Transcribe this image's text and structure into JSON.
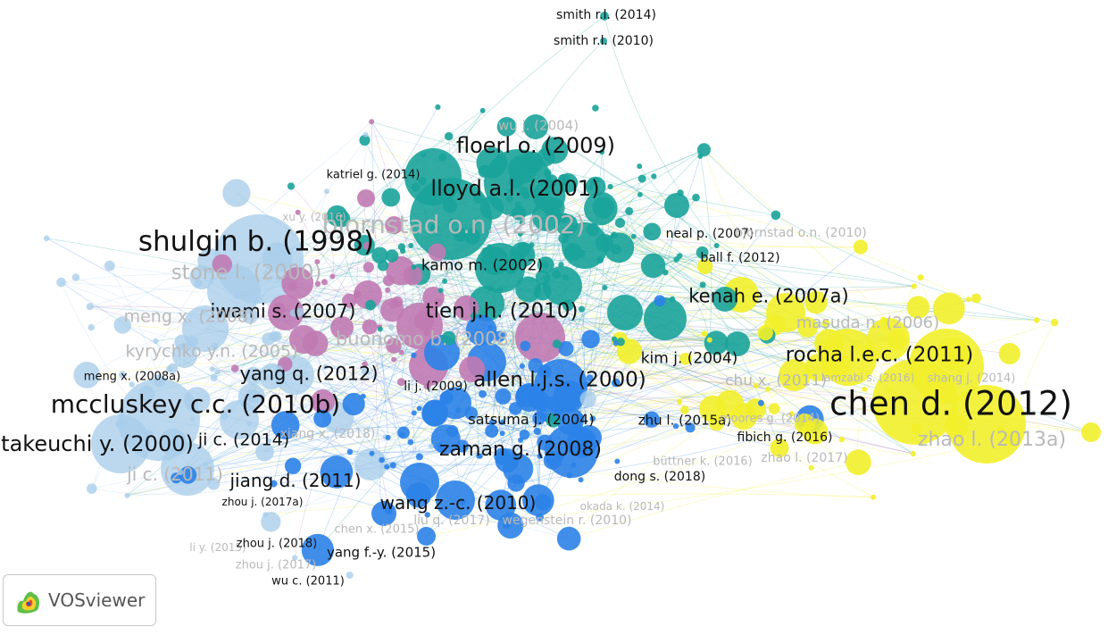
{
  "app": {
    "name": "VOSviewer"
  },
  "logo": {
    "icon": "vosviewer-logo-icon",
    "text": "VOSviewer"
  },
  "colors": {
    "cyan": "#1aa39a",
    "light_blue": "#a8cdea",
    "blue": "#2b82e8",
    "purple": "#c07ab2",
    "yellow": "#f2ef2a"
  },
  "labels": [
    {
      "id": "smith-2014",
      "text": "smith r.l. (2014)"
    },
    {
      "id": "smith-2010",
      "text": "smith r.l. (2010)"
    },
    {
      "id": "wu-2004",
      "text": "wu j. (2004)"
    },
    {
      "id": "floerl-2009",
      "text": "floerl o. (2009)"
    },
    {
      "id": "katriel-2014",
      "text": "katriel g. (2014)"
    },
    {
      "id": "lloyd-2001",
      "text": "lloyd a.l. (2001)"
    },
    {
      "id": "xu-2016",
      "text": "xu y. (2016)"
    },
    {
      "id": "bjornstad-2002",
      "text": "bjornstad o.n. (2002)"
    },
    {
      "id": "neal-2007",
      "text": "neal p. (2007)"
    },
    {
      "id": "bjornstad-2010",
      "text": "bjornstad o.n. (2010)"
    },
    {
      "id": "ball-2012",
      "text": "ball f. (2012)"
    },
    {
      "id": "shulgin-1998",
      "text": "shulgin b. (1998)"
    },
    {
      "id": "stone-2000",
      "text": "stone l. (2000)"
    },
    {
      "id": "kamo-2002",
      "text": "kamo m. (2002)"
    },
    {
      "id": "kenah-2007a",
      "text": "kenah e. (2007a)"
    },
    {
      "id": "iwami-2007",
      "text": "iwami s. (2007)"
    },
    {
      "id": "tien-2010",
      "text": "tien j.h. (2010)"
    },
    {
      "id": "masuda-2006",
      "text": "masuda n. (2006)"
    },
    {
      "id": "meng-2008",
      "text": "meng x. (2008)"
    },
    {
      "id": "buonomo-2008",
      "text": "buonomo b. (2008)"
    },
    {
      "id": "kyrychko",
      "text": "kyrychko y.n. (2005)"
    },
    {
      "id": "rocha-2011",
      "text": "rocha l.e.c. (2011)"
    },
    {
      "id": "kim-2004",
      "text": "kim j. (2004)"
    },
    {
      "id": "meng-2008a",
      "text": "meng x. (2008a)"
    },
    {
      "id": "yang-2012",
      "text": "yang q. (2012)"
    },
    {
      "id": "chu-2011",
      "text": "chu x. (2011)"
    },
    {
      "id": "lamzabi-2016",
      "text": "lamzabi s. (2016)"
    },
    {
      "id": "shang-2014",
      "text": "shang j. (2014)"
    },
    {
      "id": "allen-2000",
      "text": "allen l.j.s. (2000)"
    },
    {
      "id": "li-2009",
      "text": "li j. (2009)"
    },
    {
      "id": "mccluskey-2010b",
      "text": "mccluskey c.c. (2010b)"
    },
    {
      "id": "chen-2012",
      "text": "chen d. (2012)"
    },
    {
      "id": "satsuma-2004",
      "text": "satsuma j. (2004)"
    },
    {
      "id": "zhu-2015a",
      "text": "zhu l. (2015a)"
    },
    {
      "id": "moores-2014",
      "text": "moores g. (2014)"
    },
    {
      "id": "takeuchi-2000",
      "text": "takeuchi y. (2000)"
    },
    {
      "id": "ji-2014",
      "text": "ji c. (2014)"
    },
    {
      "id": "xiang-2018",
      "text": "xiang x. (2018)"
    },
    {
      "id": "fibich-2016",
      "text": "fibich g. (2016)"
    },
    {
      "id": "zhao-2013a",
      "text": "zhao l. (2013a)"
    },
    {
      "id": "zaman-2008",
      "text": "zaman g. (2008)"
    },
    {
      "id": "buttner-2016",
      "text": "büttner k. (2016)"
    },
    {
      "id": "zhao-2017",
      "text": "zhao l. (2017)"
    },
    {
      "id": "ji-2011",
      "text": "ji c. (2011)"
    },
    {
      "id": "jiang-2011",
      "text": "jiang d. (2011)"
    },
    {
      "id": "dong-2018",
      "text": "dong s. (2018)"
    },
    {
      "id": "zhou-2017a",
      "text": "zhou j. (2017a)"
    },
    {
      "id": "wang-2010",
      "text": "wang z.-c. (2010)"
    },
    {
      "id": "okada-2014",
      "text": "okada k. (2014)"
    },
    {
      "id": "liu-2017",
      "text": "liu q. (2017)"
    },
    {
      "id": "wegenstein-2010",
      "text": "wegenstein r. (2010)"
    },
    {
      "id": "chen-2015",
      "text": "chen x. (2015)"
    },
    {
      "id": "li-2015",
      "text": "li y. (2015)"
    },
    {
      "id": "zhou-2018",
      "text": "zhou j. (2018)"
    },
    {
      "id": "yang-2015",
      "text": "yang f.-y. (2015)"
    },
    {
      "id": "zhou-2017",
      "text": "zhou j. (2017)"
    },
    {
      "id": "wu-2011",
      "text": "wu c. (2011)"
    }
  ]
}
